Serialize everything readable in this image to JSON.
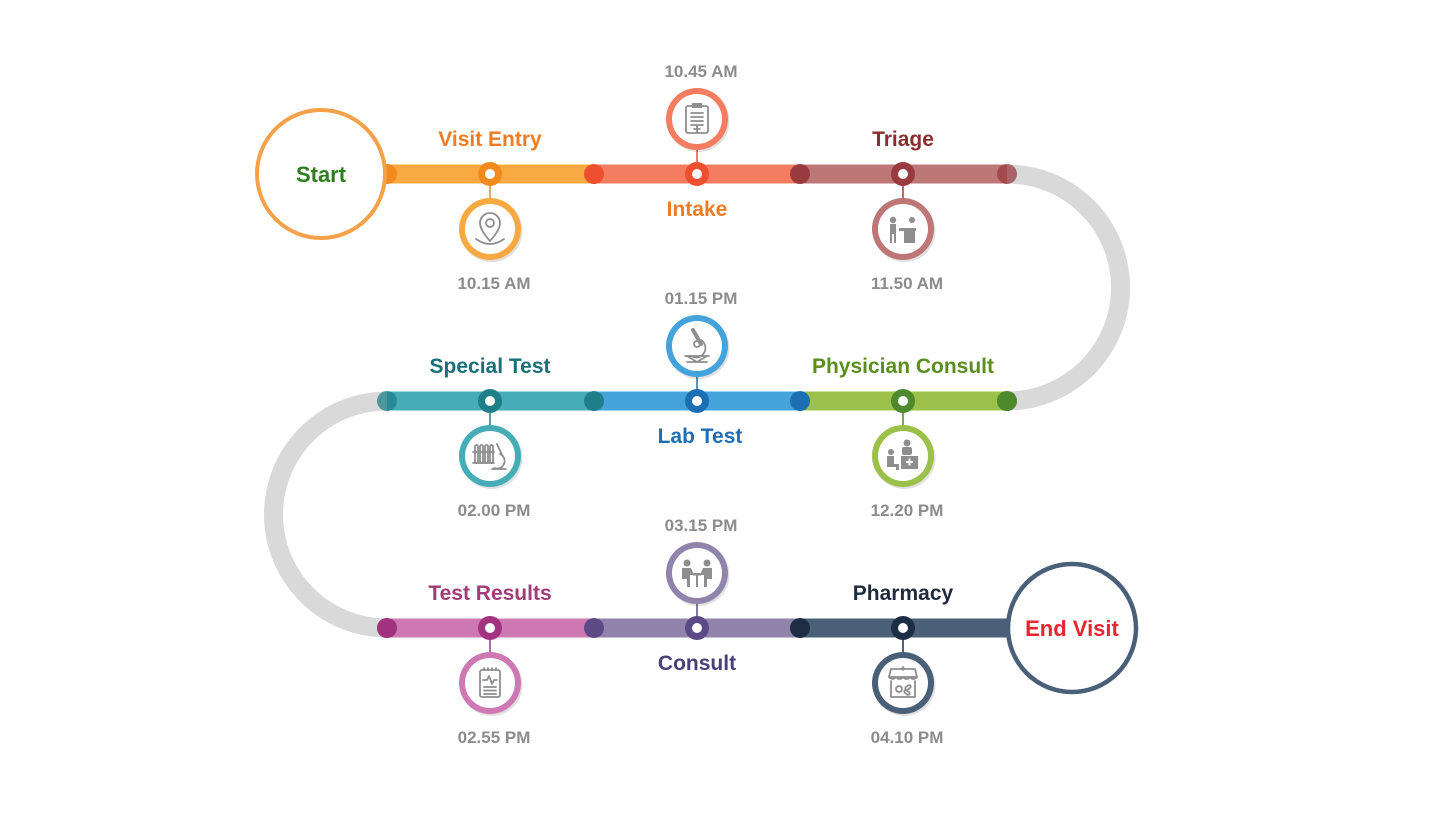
{
  "start": {
    "label": "Start",
    "color": "#f4a14a",
    "text_color": "#2e7d1e"
  },
  "end": {
    "label": "End Visit",
    "color": "#4a6079",
    "text_color": "#e8242f"
  },
  "connector_color": "#d9d9d9",
  "steps": [
    {
      "name": "Visit Entry",
      "time": "10.15 AM",
      "color": "#f9a942",
      "dark": "#f28a1e",
      "label_color": "#ef7c22",
      "icon": "location-pin-icon"
    },
    {
      "name": "Intake",
      "time": "10.45 AM",
      "color": "#f47c60",
      "dark": "#ee4f2e",
      "label_color": "#ef7c22",
      "icon": "clipboard-icon"
    },
    {
      "name": "Triage",
      "time": "11.50 AM",
      "color": "#bd7776",
      "dark": "#9a3b3f",
      "label_color": "#8a2e2f",
      "icon": "triage-desk-icon"
    },
    {
      "name": "Physician Consult",
      "time": "12.20 PM",
      "color": "#9bc14a",
      "dark": "#4e8a2c",
      "label_color": "#5a8f1f",
      "icon": "physician-desk-icon"
    },
    {
      "name": "Lab Test",
      "time": "01.15 PM",
      "color": "#45a3dc",
      "dark": "#1d6fb3",
      "label_color": "#1f6fb5",
      "icon": "microscope-icon"
    },
    {
      "name": "Special Test",
      "time": "02.00 PM",
      "color": "#46adb6",
      "dark": "#1f7f88",
      "label_color": "#1a7079",
      "icon": "test-tubes-microscope-icon"
    },
    {
      "name": "Test Results",
      "time": "02.55 PM",
      "color": "#cf79b4",
      "dark": "#a23380",
      "label_color": "#a23b78",
      "icon": "report-icon"
    },
    {
      "name": "Consult",
      "time": "03.15 PM",
      "color": "#9084ad",
      "dark": "#5b4a85",
      "label_color": "#4a3f78",
      "icon": "consult-meeting-icon"
    },
    {
      "name": "Pharmacy",
      "time": "04.10 PM",
      "color": "#4a6079",
      "dark": "#1f2d44",
      "label_color": "#1f2a3c",
      "icon": "pharmacy-store-icon"
    }
  ]
}
